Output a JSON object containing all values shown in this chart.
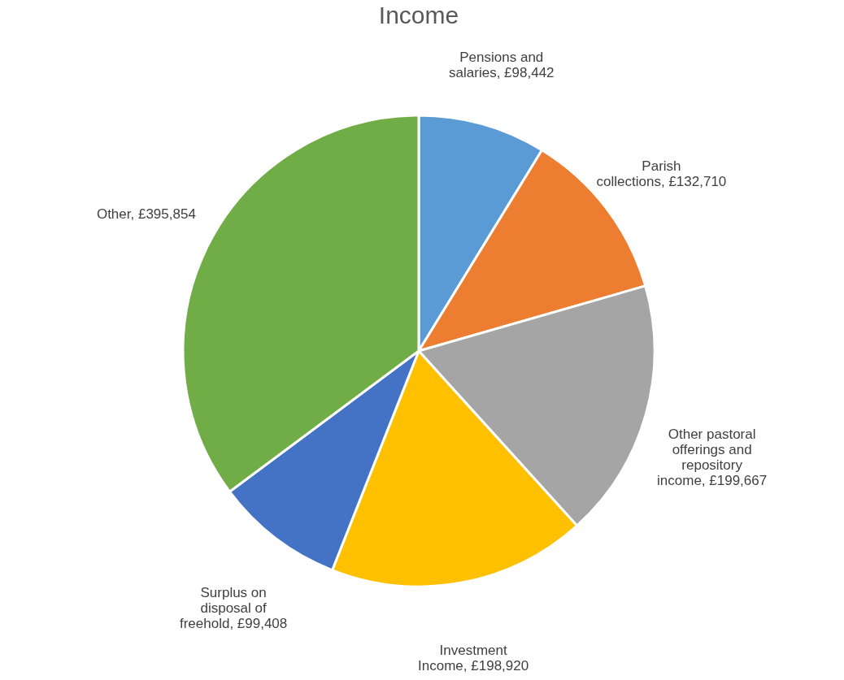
{
  "chart_data": {
    "type": "pie",
    "title": "Income",
    "categories": [
      "Pensions and salaries",
      "Parish collections",
      "Other pastoral offerings and repository income",
      "Investment Income",
      "Surplus on disposal of freehold",
      "Other "
    ],
    "values": [
      98442,
      132710,
      199667,
      198920,
      99408,
      395854
    ],
    "value_labels": [
      "£98,442",
      "£132,710",
      "£199,667",
      "£198,920",
      "£99,408",
      "£395,854"
    ],
    "colors": [
      "#5b9bd5",
      "#ed7d31",
      "#a5a5a5",
      "#ffc000",
      "#4472c4",
      "#70ad47"
    ],
    "legend": false
  }
}
